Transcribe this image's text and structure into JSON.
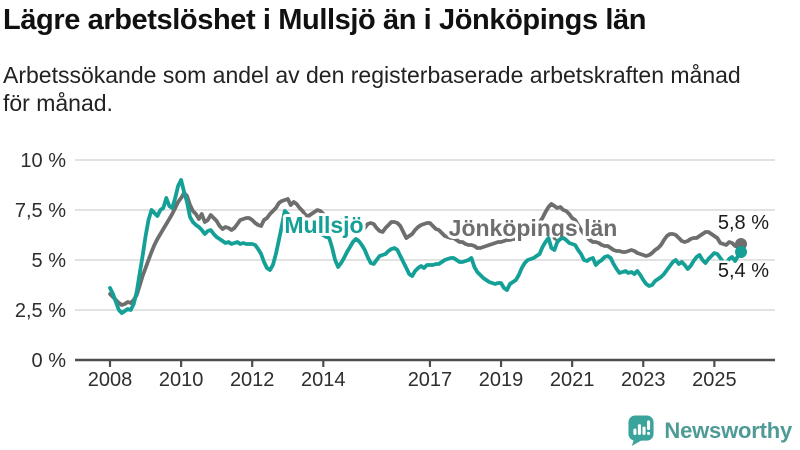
{
  "header": {
    "title": "Lägre arbetslöshet i Mullsjö än i Jönköpings län",
    "subtitle_lines": [
      "Arbetssökande som andel av den registerbaserade arbetskraften månad",
      "för månad."
    ]
  },
  "footer": {
    "brand": "Newsworthy"
  },
  "chart_data": {
    "type": "line",
    "unit": "percent of registered labour force",
    "x_start": "2008-01",
    "x_end": "2025-10",
    "points_per_year": 12,
    "ylim": [
      0,
      10
    ],
    "grid": true,
    "legend_position": "inline-labels",
    "x_ticks": [
      {
        "label": "2008",
        "year": 2008
      },
      {
        "label": "2010",
        "year": 2010
      },
      {
        "label": "2012",
        "year": 2012
      },
      {
        "label": "2014",
        "year": 2014
      },
      {
        "label": "2017",
        "year": 2017
      },
      {
        "label": "2019",
        "year": 2019
      },
      {
        "label": "2021",
        "year": 2021
      },
      {
        "label": "2023",
        "year": 2023
      },
      {
        "label": "2025",
        "year": 2025
      }
    ],
    "y_ticks": [
      {
        "label": "0 %",
        "value": 0
      },
      {
        "label": "2,5 %",
        "value": 2.5
      },
      {
        "label": "5 %",
        "value": 5
      },
      {
        "label": "7,5 %",
        "value": 7.5
      },
      {
        "label": "10 %",
        "value": 10
      }
    ],
    "series": [
      {
        "name": "Mullsjö",
        "color": "#14a096",
        "end_label": "5,4 %",
        "end_value": 5.4,
        "values": [
          3.6,
          3.3,
          2.9,
          2.5,
          2.35,
          2.45,
          2.55,
          2.5,
          2.8,
          3.4,
          4.3,
          5.2,
          6.2,
          7.0,
          7.5,
          7.35,
          7.2,
          7.5,
          7.6,
          8.1,
          7.7,
          7.6,
          8.1,
          8.7,
          9.0,
          8.4,
          7.9,
          7.15,
          6.9,
          6.75,
          6.65,
          6.5,
          6.3,
          6.45,
          6.5,
          6.3,
          6.15,
          6.05,
          5.95,
          5.85,
          5.9,
          5.8,
          5.85,
          5.9,
          5.8,
          5.85,
          5.8,
          5.8,
          5.8,
          5.75,
          5.55,
          5.3,
          4.9,
          4.6,
          4.5,
          4.75,
          5.3,
          6.0,
          6.7,
          7.45,
          7.3,
          7.1,
          7.0,
          6.85,
          6.7,
          6.6,
          6.5,
          6.45,
          6.4,
          6.3,
          6.35,
          6.3,
          6.25,
          6.15,
          6.1,
          5.6,
          5.0,
          4.65,
          4.85,
          5.1,
          5.4,
          5.65,
          5.9,
          6.05,
          5.95,
          5.75,
          5.5,
          5.15,
          4.85,
          4.8,
          5.0,
          5.2,
          5.25,
          5.3,
          5.45,
          5.55,
          5.6,
          5.5,
          5.2,
          4.9,
          4.6,
          4.3,
          4.2,
          4.45,
          4.6,
          4.7,
          4.6,
          4.75,
          4.75,
          4.75,
          4.8,
          4.8,
          4.9,
          5.0,
          5.05,
          5.1,
          5.1,
          5.0,
          4.9,
          4.9,
          4.95,
          5.0,
          5.1,
          4.65,
          4.4,
          4.25,
          4.1,
          4.0,
          3.9,
          3.85,
          3.8,
          3.85,
          3.85,
          3.6,
          3.5,
          3.8,
          3.9,
          4.0,
          4.25,
          4.6,
          4.85,
          5.0,
          5.05,
          5.1,
          5.2,
          5.3,
          5.65,
          5.9,
          6.1,
          5.6,
          5.5,
          5.9,
          6.05,
          6.1,
          6.0,
          5.85,
          5.8,
          5.75,
          5.5,
          5.3,
          5.0,
          4.95,
          5.05,
          5.1,
          4.75,
          4.9,
          5.0,
          5.15,
          5.2,
          5.1,
          4.8,
          4.55,
          4.35,
          4.4,
          4.45,
          4.35,
          4.4,
          4.3,
          4.45,
          4.25,
          4.0,
          3.8,
          3.7,
          3.75,
          3.95,
          4.05,
          4.15,
          4.3,
          4.5,
          4.7,
          4.9,
          5.0,
          4.8,
          4.9,
          4.75,
          4.55,
          4.7,
          4.95,
          5.15,
          5.25,
          5.0,
          4.85,
          5.05,
          5.2,
          5.35,
          5.3,
          5.1,
          4.9,
          4.85,
          5.05,
          5.15,
          4.95,
          5.2,
          5.4
        ]
      },
      {
        "name": "Jönköpings län",
        "color": "#6e6e6e",
        "end_label": "5,8 %",
        "end_value": 5.8,
        "values": [
          3.3,
          3.15,
          3.0,
          2.85,
          2.75,
          2.8,
          2.9,
          2.85,
          3.0,
          3.25,
          3.7,
          4.2,
          4.6,
          5.0,
          5.4,
          5.75,
          6.05,
          6.3,
          6.55,
          6.8,
          7.05,
          7.3,
          7.6,
          7.9,
          8.1,
          8.35,
          8.2,
          7.75,
          7.45,
          7.3,
          7.05,
          7.3,
          6.9,
          7.0,
          7.25,
          7.1,
          6.95,
          6.7,
          6.55,
          6.65,
          6.6,
          6.5,
          6.6,
          6.8,
          7.0,
          7.05,
          7.1,
          7.1,
          7.0,
          6.85,
          6.75,
          6.7,
          7.0,
          7.1,
          7.3,
          7.45,
          7.6,
          7.85,
          7.95,
          8.0,
          8.05,
          7.75,
          7.9,
          7.8,
          7.6,
          7.45,
          7.25,
          7.2,
          7.3,
          7.4,
          7.5,
          7.45,
          7.3,
          7.15,
          7.0,
          6.95,
          6.9,
          6.95,
          7.0,
          6.9,
          6.8,
          6.7,
          6.55,
          6.5,
          6.5,
          6.55,
          6.6,
          6.8,
          6.85,
          6.8,
          6.6,
          6.45,
          6.4,
          6.6,
          6.75,
          6.9,
          6.9,
          6.85,
          6.7,
          6.4,
          6.1,
          6.2,
          6.3,
          6.5,
          6.65,
          6.75,
          6.8,
          6.85,
          6.85,
          6.7,
          6.55,
          6.5,
          6.35,
          6.2,
          6.15,
          6.1,
          6.1,
          6.0,
          5.9,
          5.9,
          5.8,
          5.75,
          5.75,
          5.7,
          5.6,
          5.6,
          5.65,
          5.7,
          5.75,
          5.8,
          5.85,
          5.9,
          5.9,
          5.95,
          6.0,
          6.0,
          6.05,
          6.05,
          6.1,
          6.15,
          6.25,
          6.3,
          6.45,
          6.6,
          6.7,
          6.9,
          7.1,
          7.4,
          7.65,
          7.8,
          7.7,
          7.6,
          7.65,
          7.5,
          7.45,
          7.3,
          7.1,
          7.0,
          6.75,
          6.5,
          6.3,
          6.15,
          6.0,
          5.9,
          5.9,
          5.85,
          5.75,
          5.7,
          5.7,
          5.6,
          5.5,
          5.45,
          5.45,
          5.4,
          5.4,
          5.45,
          5.5,
          5.45,
          5.35,
          5.3,
          5.25,
          5.2,
          5.25,
          5.35,
          5.5,
          5.6,
          5.75,
          6.0,
          6.2,
          6.3,
          6.3,
          6.25,
          6.1,
          5.95,
          5.9,
          5.95,
          6.05,
          6.1,
          6.1,
          6.2,
          6.3,
          6.4,
          6.4,
          6.3,
          6.2,
          6.1,
          5.85,
          5.8,
          5.75,
          5.9,
          5.85,
          5.7,
          5.65,
          5.8
        ]
      }
    ]
  }
}
